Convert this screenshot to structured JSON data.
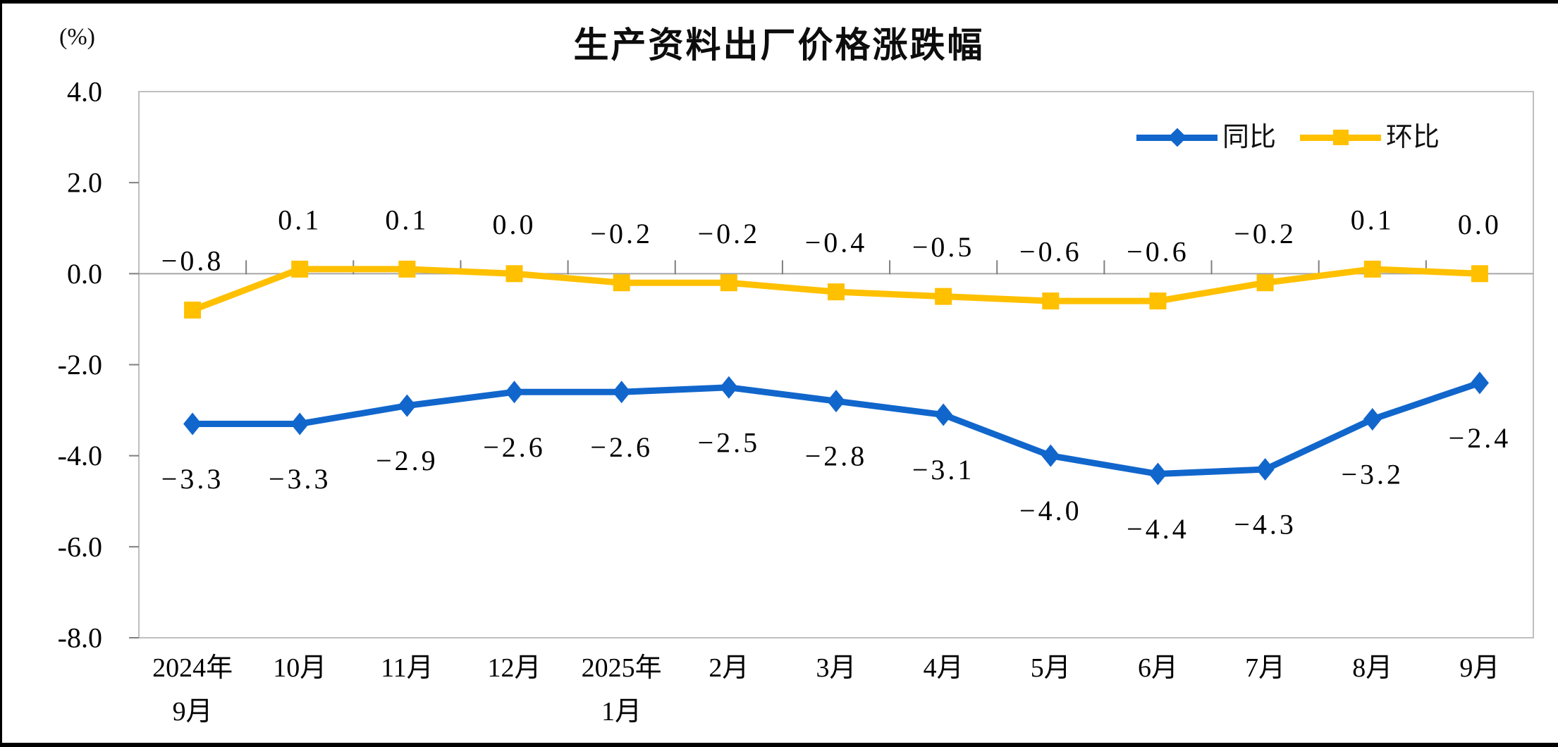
{
  "page": {
    "background": "#FFFFFF",
    "frame_color": "#000000"
  },
  "chart_data": {
    "type": "line",
    "title": "生产资料出厂价格涨跌幅",
    "unit_label": "(%)",
    "legend_position": "top-right-inside",
    "grid": "zero-line-only",
    "ylim": [
      -8.0,
      4.0
    ],
    "y_ticks": [
      "4.0",
      "2.0",
      "0.0",
      "-2.0",
      "-4.0",
      "-6.0",
      "-8.0"
    ],
    "y_tick_values": [
      4,
      2,
      0,
      -2,
      -4,
      -6,
      -8
    ],
    "categories": [
      "2024年9月",
      "10月",
      "11月",
      "12月",
      "2025年1月",
      "2月",
      "3月",
      "4月",
      "5月",
      "6月",
      "7月",
      "8月",
      "9月"
    ],
    "category_lines": [
      [
        "2024年",
        "9月"
      ],
      [
        "10月"
      ],
      [
        "11月"
      ],
      [
        "12月"
      ],
      [
        "2025年",
        "1月"
      ],
      [
        "2月"
      ],
      [
        "3月"
      ],
      [
        "4月"
      ],
      [
        "5月"
      ],
      [
        "6月"
      ],
      [
        "7月"
      ],
      [
        "8月"
      ],
      [
        "9月"
      ]
    ],
    "series": [
      {
        "name": "同比",
        "color": "#1166CC",
        "marker": "diamond",
        "label_position": "below",
        "values": [
          -3.3,
          -3.3,
          -2.9,
          -2.6,
          -2.6,
          -2.5,
          -2.8,
          -3.1,
          -4.0,
          -4.4,
          -4.3,
          -3.2,
          -2.4
        ],
        "labels": [
          "-3.3",
          "-3.3",
          "-2.9",
          "-2.6",
          "-2.6",
          "-2.5",
          "-2.8",
          "-3.1",
          "-4.0",
          "-4.4",
          "-4.3",
          "-3.2",
          "-2.4"
        ]
      },
      {
        "name": "环比",
        "color": "#FFC000",
        "marker": "square",
        "label_position": "above",
        "values": [
          -0.8,
          0.1,
          0.1,
          0.0,
          -0.2,
          -0.2,
          -0.4,
          -0.5,
          -0.6,
          -0.6,
          -0.2,
          0.1,
          0.0
        ],
        "labels": [
          "-0.8",
          "0.1",
          "0.1",
          "0.0",
          "-0.2",
          "-0.2",
          "-0.4",
          "-0.5",
          "-0.6",
          "-0.6",
          "-0.2",
          "0.1",
          "0.0"
        ]
      }
    ],
    "axis_colors": {
      "border": "#BFBFBF",
      "zero_line": "#A6A6A6",
      "tick": "#7F7F7F",
      "label": "#000000"
    }
  }
}
